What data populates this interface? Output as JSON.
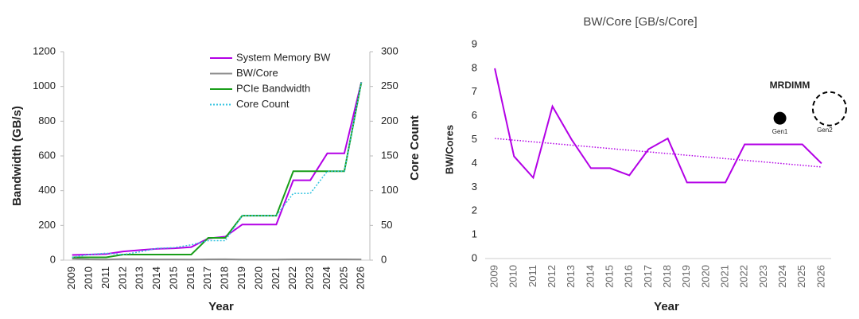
{
  "chart_data": [
    {
      "type": "line",
      "xlabel": "Year",
      "ylabel": "Bandwidth (GB/s)",
      "y2label": "Core Count",
      "categories": [
        "2009",
        "2010",
        "2011",
        "2012",
        "2013",
        "2014",
        "2015",
        "2016",
        "2017",
        "2018",
        "2019",
        "2020",
        "2021",
        "2022",
        "2023",
        "2024",
        "2025",
        "2026"
      ],
      "ylim": [
        0,
        1200
      ],
      "yticks": [
        0,
        200,
        400,
        600,
        800,
        1000,
        1200
      ],
      "y2lim": [
        0,
        300
      ],
      "y2ticks": [
        0,
        50,
        100,
        150,
        200,
        250,
        300
      ],
      "legend": "top-right",
      "series": [
        {
          "name": "System Memory BW",
          "color": "#b300e6",
          "style": "solid",
          "values": [
            30,
            32,
            35,
            50,
            58,
            65,
            68,
            75,
            125,
            135,
            205,
            205,
            205,
            460,
            460,
            615,
            615,
            1025
          ]
        },
        {
          "name": "BW/Core",
          "color": "#8c8c8c",
          "style": "solid",
          "values": [
            8,
            4.3,
            3.4,
            6.4,
            5,
            3.8,
            3.8,
            3.5,
            4.6,
            5.05,
            3.2,
            3.2,
            3.2,
            4.8,
            4.8,
            4.8,
            4.8,
            4
          ]
        },
        {
          "name": "PCIe Bandwidth",
          "color": "#1a9e1a",
          "style": "solid",
          "values": [
            16,
            16,
            16,
            32,
            32,
            32,
            32,
            32,
            128,
            128,
            256,
            256,
            256,
            512,
            512,
            512,
            512,
            1024
          ]
        },
        {
          "name": "Core Count",
          "color": "#33c3e0",
          "style": "dotted",
          "axis": "y2",
          "values": [
            4,
            8,
            10,
            8,
            12,
            17,
            18,
            22,
            28,
            28,
            64,
            64,
            64,
            96,
            96,
            128,
            128,
            256
          ]
        }
      ]
    },
    {
      "type": "line",
      "title": "BW/Core [GB/s/Core]",
      "xlabel": "Year",
      "ylabel": "BW/Cores",
      "categories": [
        "2009",
        "2010",
        "2011",
        "2012",
        "2013",
        "2014",
        "2015",
        "2016",
        "2017",
        "2018",
        "2019",
        "2020",
        "2021",
        "2022",
        "2023",
        "2024",
        "2025",
        "2026"
      ],
      "ylim": [
        0,
        9
      ],
      "yticks": [
        0,
        1,
        2,
        3,
        4,
        5,
        6,
        7,
        8,
        9
      ],
      "series": [
        {
          "color": "#b300e6",
          "style": "solid",
          "values": [
            8,
            4.3,
            3.4,
            6.4,
            5,
            3.8,
            3.8,
            3.5,
            4.6,
            5.05,
            3.2,
            3.2,
            3.2,
            4.8,
            4.8,
            4.8,
            4.8,
            4
          ]
        }
      ],
      "trendline": {
        "color": "#b300e6",
        "values": [
          5.05,
          3.85
        ]
      },
      "annotation": "MRDIMM",
      "markers": [
        {
          "label": "Gen1",
          "x": "2024",
          "value": 5.9
        },
        {
          "label": "Gen2",
          "x": "2026",
          "value": 6.3
        }
      ]
    }
  ]
}
